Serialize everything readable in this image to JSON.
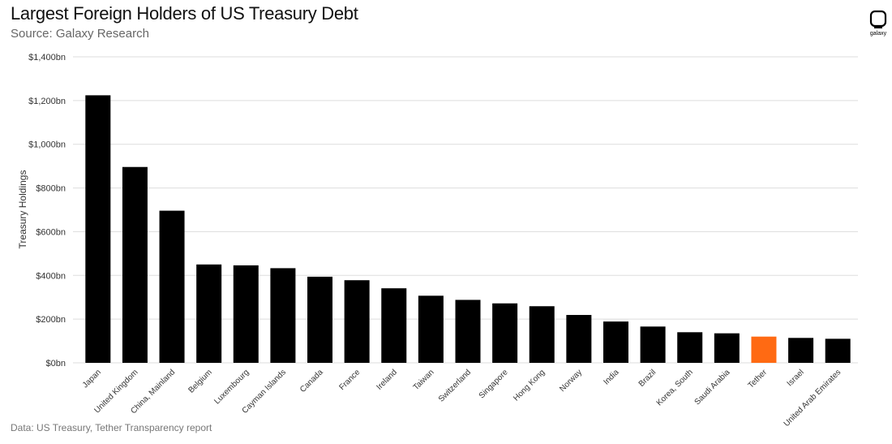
{
  "header": {
    "title": "Largest Foreign Holders of US Treasury Debt",
    "subtitle": "Source: Galaxy Research"
  },
  "logo": {
    "text": "galaxy"
  },
  "footer": {
    "text": "Data: US Treasury, Tether Transparency report"
  },
  "colors": {
    "bar": "#000000",
    "highlight": "#ff6a13",
    "grid": "#dddddd"
  },
  "chart_data": {
    "type": "bar",
    "ylabel": "Treasury Holdings",
    "ylim": [
      0,
      1400
    ],
    "yticks": [
      0,
      200,
      400,
      600,
      800,
      1000,
      1200,
      1400
    ],
    "ytick_labels": [
      "$0bn",
      "$200bn",
      "$400bn",
      "$600bn",
      "$800bn",
      "$1,000bn",
      "$1,200bn",
      "$1,400bn"
    ],
    "grid": true,
    "highlight_category": "Tether",
    "categories": [
      "Japan",
      "United Kingdom",
      "China, Mainland",
      "Belgium",
      "Luxembourg",
      "Cayman Islands",
      "Canada",
      "France",
      "Ireland",
      "Taiwan",
      "Switzerland",
      "Singapore",
      "Hong Kong",
      "Norway",
      "India",
      "Brazil",
      "Korea, South",
      "Saudi Arabia",
      "Tether",
      "Israel",
      "United Arab Emirates"
    ],
    "values": [
      1224,
      896,
      696,
      450,
      446,
      433,
      394,
      378,
      341,
      307,
      288,
      272,
      259,
      219,
      189,
      166,
      140,
      135,
      120,
      114,
      110
    ]
  }
}
